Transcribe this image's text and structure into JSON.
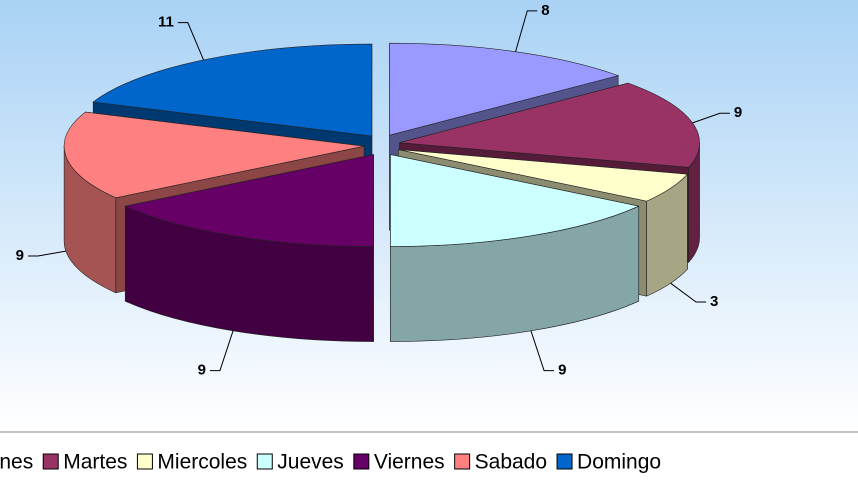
{
  "chart_data": {
    "type": "pie3d",
    "categories": [
      "Lunes",
      "Martes",
      "Miercoles",
      "Jueves",
      "Viernes",
      "Sabado",
      "Domingo"
    ],
    "values": [
      8,
      9,
      3,
      9,
      9,
      9,
      11
    ],
    "colors": [
      "#9999ff",
      "#993366",
      "#ffffcc",
      "#ccffff",
      "#660066",
      "#ff8080",
      "#0066cc"
    ],
    "legend": "bottom"
  }
}
